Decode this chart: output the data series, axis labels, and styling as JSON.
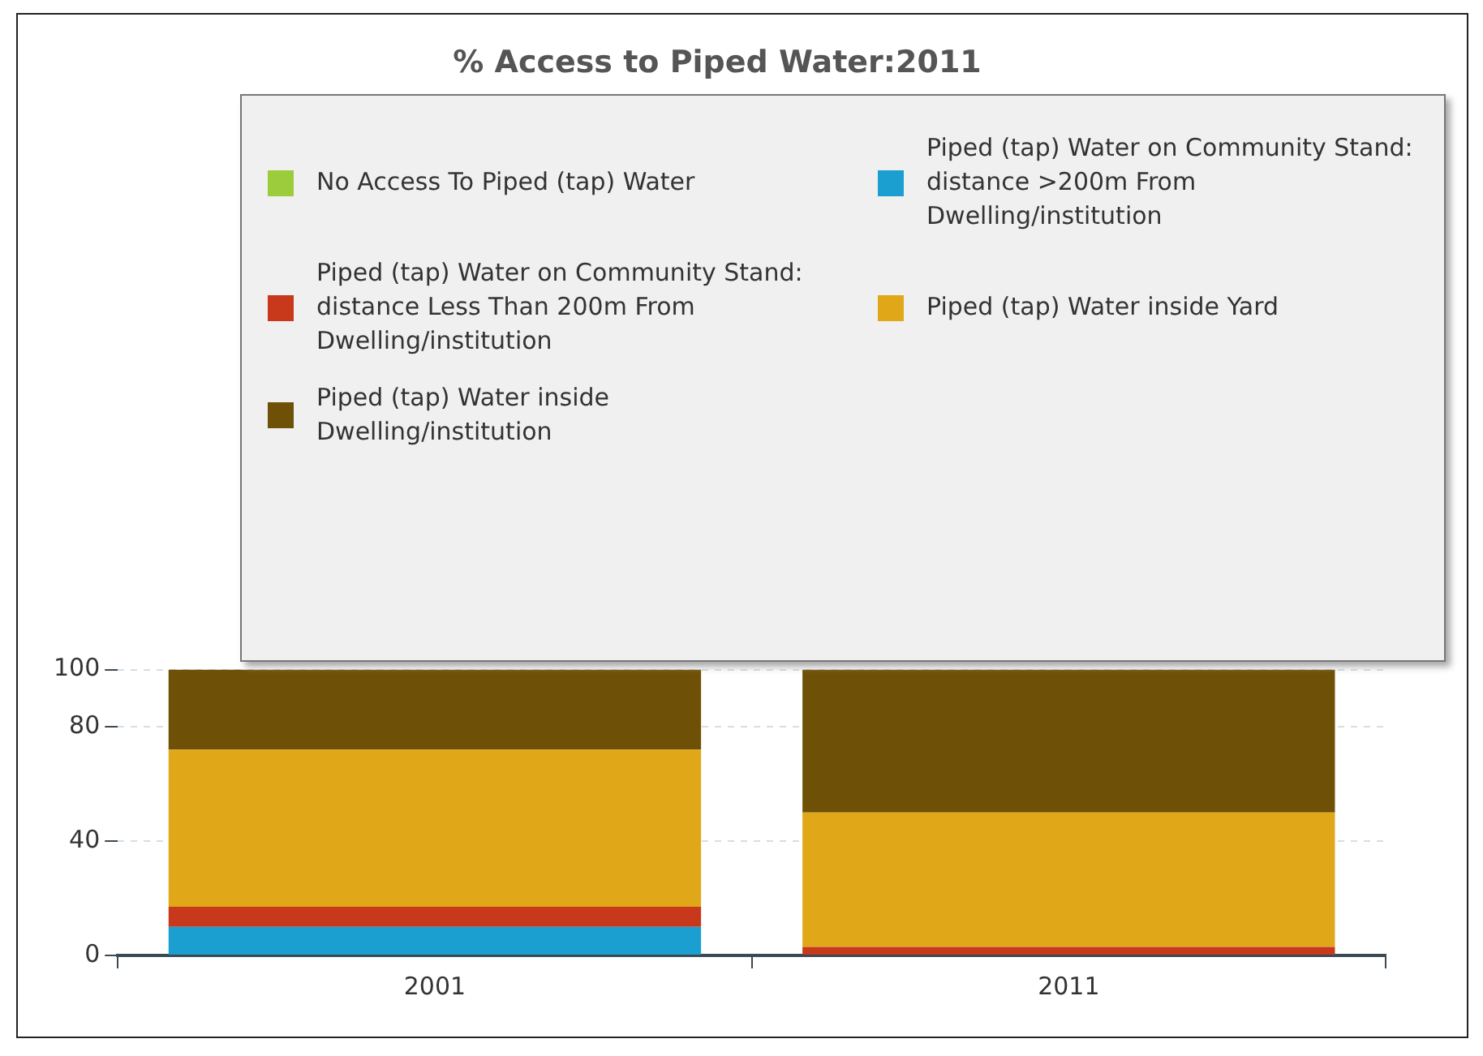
{
  "chart_data": {
    "type": "bar",
    "title": "% Access to Piped Water:2011",
    "categories": [
      "2001",
      "2011"
    ],
    "stacked": true,
    "series": [
      {
        "name": "No Access To Piped (tap) Water",
        "color": "#9ccc3c",
        "values": [
          0,
          0
        ]
      },
      {
        "name": "Piped (tap) Water on Community Stand: distance >200m From Dwelling/institution",
        "color": "#1a9fd0",
        "values": [
          10,
          0
        ]
      },
      {
        "name": "Piped (tap) Water on Community Stand: distance Less Than 200m From Dwelling/institution",
        "color": "#c8381a",
        "values": [
          7,
          3
        ]
      },
      {
        "name": "Piped (tap) Water inside Yard",
        "color": "#e0a818",
        "values": [
          55,
          47
        ]
      },
      {
        "name": "Piped (tap) Water inside Dwelling/institution",
        "color": "#6e5006",
        "values": [
          28,
          50
        ]
      }
    ],
    "ylim": [
      0,
      100
    ],
    "yticks": [
      0,
      40,
      80,
      100
    ],
    "grid": "y",
    "legend": "top"
  }
}
